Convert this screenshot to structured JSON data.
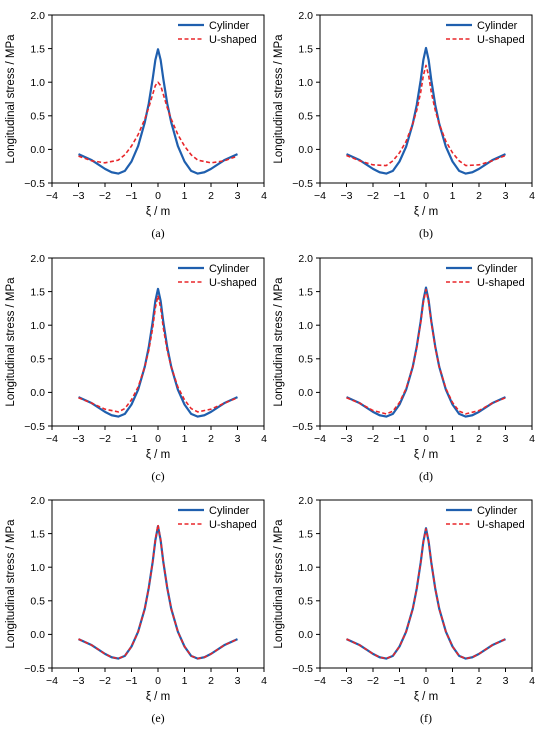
{
  "chart_data": [
    {
      "type": "line",
      "panel_label": "(a)",
      "xlabel": "ξ / m",
      "ylabel": "Longitudinal stress / MPa",
      "xlim": [
        -4,
        4
      ],
      "ylim": [
        -0.5,
        2.0
      ],
      "xticks": [
        "−4",
        "−3",
        "−2",
        "−1",
        "0",
        "1",
        "2",
        "3",
        "4"
      ],
      "yticks": [
        "−0.5",
        "0.0",
        "0.5",
        "1.0",
        "1.5",
        "2.0"
      ],
      "legend_position": "top-right",
      "series": [
        {
          "name": "Cylinder",
          "color": "#1f5fae",
          "style": "solid",
          "x": [
            -3.0,
            -2.5,
            -2.0,
            -1.75,
            -1.5,
            -1.25,
            -1.0,
            -0.75,
            -0.5,
            -0.35,
            -0.2,
            -0.1,
            0.0,
            0.1,
            0.2,
            0.35,
            0.5,
            0.75,
            1.0,
            1.25,
            1.5,
            1.75,
            2.0,
            2.5,
            3.0
          ],
          "y": [
            -0.07,
            -0.16,
            -0.29,
            -0.34,
            -0.36,
            -0.32,
            -0.18,
            0.05,
            0.4,
            0.68,
            1.05,
            1.33,
            1.49,
            1.33,
            1.05,
            0.68,
            0.4,
            0.05,
            -0.18,
            -0.32,
            -0.36,
            -0.34,
            -0.29,
            -0.16,
            -0.07
          ]
        },
        {
          "name": "U-shaped",
          "color": "#e8262a",
          "style": "dashed",
          "x": [
            -3.0,
            -2.5,
            -2.0,
            -1.5,
            -1.25,
            -1.0,
            -0.75,
            -0.5,
            -0.35,
            -0.2,
            -0.1,
            0.0,
            0.1,
            0.2,
            0.35,
            0.5,
            0.75,
            1.0,
            1.25,
            1.5,
            2.0,
            2.5,
            3.0
          ],
          "y": [
            -0.1,
            -0.17,
            -0.2,
            -0.16,
            -0.08,
            0.05,
            0.22,
            0.45,
            0.62,
            0.82,
            0.95,
            1.0,
            0.95,
            0.82,
            0.62,
            0.45,
            0.22,
            0.05,
            -0.08,
            -0.16,
            -0.2,
            -0.17,
            -0.1
          ]
        }
      ]
    },
    {
      "type": "line",
      "panel_label": "(b)",
      "xlabel": "ξ / m",
      "ylabel": "Longitudinal stress / MPa",
      "xlim": [
        -4,
        4
      ],
      "ylim": [
        -0.5,
        2.0
      ],
      "xticks": [
        "−4",
        "−3",
        "−2",
        "−1",
        "0",
        "1",
        "2",
        "3",
        "4"
      ],
      "yticks": [
        "−0.5",
        "0.0",
        "0.5",
        "1.0",
        "1.5",
        "2.0"
      ],
      "legend_position": "top-right",
      "series": [
        {
          "name": "Cylinder",
          "color": "#1f5fae",
          "style": "solid",
          "x": [
            -3.0,
            -2.5,
            -2.0,
            -1.75,
            -1.5,
            -1.25,
            -1.0,
            -0.75,
            -0.5,
            -0.35,
            -0.2,
            -0.1,
            0.0,
            0.1,
            0.2,
            0.35,
            0.5,
            0.75,
            1.0,
            1.25,
            1.5,
            1.75,
            2.0,
            2.5,
            3.0
          ],
          "y": [
            -0.07,
            -0.16,
            -0.29,
            -0.34,
            -0.36,
            -0.32,
            -0.18,
            0.04,
            0.38,
            0.66,
            1.03,
            1.33,
            1.51,
            1.33,
            1.03,
            0.66,
            0.38,
            0.04,
            -0.18,
            -0.32,
            -0.36,
            -0.34,
            -0.29,
            -0.16,
            -0.07
          ]
        },
        {
          "name": "U-shaped",
          "color": "#e8262a",
          "style": "dashed",
          "x": [
            -3.0,
            -2.5,
            -2.0,
            -1.5,
            -1.25,
            -1.0,
            -0.75,
            -0.5,
            -0.35,
            -0.2,
            -0.1,
            0.0,
            0.1,
            0.2,
            0.35,
            0.5,
            0.75,
            1.0,
            1.25,
            1.5,
            2.0,
            2.5,
            3.0
          ],
          "y": [
            -0.09,
            -0.17,
            -0.23,
            -0.24,
            -0.17,
            -0.05,
            0.12,
            0.38,
            0.58,
            0.85,
            1.1,
            1.25,
            1.1,
            0.85,
            0.58,
            0.38,
            0.12,
            -0.05,
            -0.17,
            -0.24,
            -0.23,
            -0.17,
            -0.09
          ]
        }
      ]
    },
    {
      "type": "line",
      "panel_label": "(c)",
      "xlabel": "ξ / m",
      "ylabel": "Longitudinal stress / MPa",
      "xlim": [
        -4,
        4
      ],
      "ylim": [
        -0.5,
        2.0
      ],
      "xticks": [
        "−4",
        "−3",
        "−2",
        "−1",
        "0",
        "1",
        "2",
        "3",
        "4"
      ],
      "yticks": [
        "−0.5",
        "0.0",
        "0.5",
        "1.0",
        "1.5",
        "2.0"
      ],
      "legend_position": "top-right",
      "series": [
        {
          "name": "Cylinder",
          "color": "#1f5fae",
          "style": "solid",
          "x": [
            -3.0,
            -2.5,
            -2.0,
            -1.75,
            -1.5,
            -1.25,
            -1.0,
            -0.75,
            -0.5,
            -0.35,
            -0.2,
            -0.1,
            0.0,
            0.1,
            0.2,
            0.35,
            0.5,
            0.75,
            1.0,
            1.25,
            1.5,
            1.75,
            2.0,
            2.5,
            3.0
          ],
          "y": [
            -0.07,
            -0.16,
            -0.29,
            -0.34,
            -0.36,
            -0.32,
            -0.18,
            0.04,
            0.38,
            0.67,
            1.05,
            1.36,
            1.54,
            1.36,
            1.05,
            0.67,
            0.38,
            0.04,
            -0.18,
            -0.32,
            -0.36,
            -0.34,
            -0.29,
            -0.16,
            -0.07
          ]
        },
        {
          "name": "U-shaped",
          "color": "#e8262a",
          "style": "dashed",
          "x": [
            -3.0,
            -2.5,
            -2.0,
            -1.5,
            -1.25,
            -1.0,
            -0.75,
            -0.5,
            -0.35,
            -0.2,
            -0.1,
            0.0,
            0.1,
            0.2,
            0.35,
            0.5,
            0.75,
            1.0,
            1.25,
            1.5,
            2.0,
            2.5,
            3.0
          ],
          "y": [
            -0.08,
            -0.16,
            -0.25,
            -0.29,
            -0.24,
            -0.11,
            0.08,
            0.38,
            0.62,
            0.96,
            1.26,
            1.44,
            1.26,
            0.96,
            0.62,
            0.38,
            0.08,
            -0.11,
            -0.24,
            -0.29,
            -0.25,
            -0.16,
            -0.08
          ]
        }
      ]
    },
    {
      "type": "line",
      "panel_label": "(d)",
      "xlabel": "ξ / m",
      "ylabel": "Longitudinal stress / MPa",
      "xlim": [
        -4,
        4
      ],
      "ylim": [
        -0.5,
        2.0
      ],
      "xticks": [
        "−4",
        "−3",
        "−2",
        "−1",
        "0",
        "1",
        "2",
        "3",
        "4"
      ],
      "yticks": [
        "−0.5",
        "0.0",
        "0.5",
        "1.0",
        "1.5",
        "2.0"
      ],
      "legend_position": "top-right",
      "series": [
        {
          "name": "Cylinder",
          "color": "#1f5fae",
          "style": "solid",
          "x": [
            -3.0,
            -2.5,
            -2.0,
            -1.75,
            -1.5,
            -1.25,
            -1.0,
            -0.75,
            -0.5,
            -0.35,
            -0.2,
            -0.1,
            0.0,
            0.1,
            0.2,
            0.35,
            0.5,
            0.75,
            1.0,
            1.25,
            1.5,
            1.75,
            2.0,
            2.5,
            3.0
          ],
          "y": [
            -0.07,
            -0.16,
            -0.29,
            -0.34,
            -0.36,
            -0.32,
            -0.18,
            0.04,
            0.38,
            0.68,
            1.06,
            1.37,
            1.56,
            1.37,
            1.06,
            0.68,
            0.38,
            0.04,
            -0.18,
            -0.32,
            -0.36,
            -0.34,
            -0.29,
            -0.16,
            -0.07
          ]
        },
        {
          "name": "U-shaped",
          "color": "#e8262a",
          "style": "dashed",
          "x": [
            -3.0,
            -2.5,
            -2.0,
            -1.5,
            -1.25,
            -1.0,
            -0.75,
            -0.5,
            -0.35,
            -0.2,
            -0.1,
            0.0,
            0.1,
            0.2,
            0.35,
            0.5,
            0.75,
            1.0,
            1.25,
            1.5,
            2.0,
            2.5,
            3.0
          ],
          "y": [
            -0.08,
            -0.16,
            -0.27,
            -0.32,
            -0.28,
            -0.15,
            0.06,
            0.38,
            0.66,
            1.04,
            1.34,
            1.53,
            1.34,
            1.04,
            0.66,
            0.38,
            0.06,
            -0.15,
            -0.28,
            -0.32,
            -0.27,
            -0.16,
            -0.08
          ]
        }
      ]
    },
    {
      "type": "line",
      "panel_label": "(e)",
      "xlabel": "ξ / m",
      "ylabel": "Longitudinal stress / MPa",
      "xlim": [
        -4,
        4
      ],
      "ylim": [
        -0.5,
        2.0
      ],
      "xticks": [
        "−4",
        "−3",
        "−2",
        "−1",
        "0",
        "1",
        "2",
        "3",
        "4"
      ],
      "yticks": [
        "−0.5",
        "0.0",
        "0.5",
        "1.0",
        "1.5",
        "2.0"
      ],
      "legend_position": "top-right",
      "series": [
        {
          "name": "Cylinder",
          "color": "#1f5fae",
          "style": "solid",
          "x": [
            -3.0,
            -2.5,
            -2.0,
            -1.75,
            -1.5,
            -1.25,
            -1.0,
            -0.75,
            -0.5,
            -0.35,
            -0.2,
            -0.1,
            0.0,
            0.1,
            0.2,
            0.35,
            0.5,
            0.75,
            1.0,
            1.25,
            1.5,
            1.75,
            2.0,
            2.5,
            3.0
          ],
          "y": [
            -0.07,
            -0.16,
            -0.29,
            -0.34,
            -0.36,
            -0.32,
            -0.18,
            0.04,
            0.38,
            0.69,
            1.08,
            1.4,
            1.61,
            1.4,
            1.08,
            0.69,
            0.38,
            0.04,
            -0.18,
            -0.32,
            -0.36,
            -0.34,
            -0.29,
            -0.16,
            -0.07
          ]
        },
        {
          "name": "U-shaped",
          "color": "#e8262a",
          "style": "dashed",
          "x": [
            -3.0,
            -2.5,
            -2.0,
            -1.75,
            -1.5,
            -1.25,
            -1.0,
            -0.75,
            -0.5,
            -0.35,
            -0.2,
            -0.1,
            0.0,
            0.1,
            0.2,
            0.35,
            0.5,
            0.75,
            1.0,
            1.25,
            1.5,
            1.75,
            2.0,
            2.5,
            3.0
          ],
          "y": [
            -0.07,
            -0.16,
            -0.29,
            -0.34,
            -0.36,
            -0.32,
            -0.18,
            0.04,
            0.38,
            0.69,
            1.08,
            1.41,
            1.63,
            1.41,
            1.08,
            0.69,
            0.38,
            0.04,
            -0.18,
            -0.32,
            -0.36,
            -0.34,
            -0.29,
            -0.16,
            -0.07
          ]
        }
      ]
    },
    {
      "type": "line",
      "panel_label": "(f)",
      "xlabel": "ξ / m",
      "ylabel": "Longitudinal stress / MPa",
      "xlim": [
        -4,
        4
      ],
      "ylim": [
        -0.5,
        2.0
      ],
      "xticks": [
        "−4",
        "−3",
        "−2",
        "−1",
        "0",
        "1",
        "2",
        "3",
        "4"
      ],
      "yticks": [
        "−0.5",
        "0.0",
        "0.5",
        "1.0",
        "1.5",
        "2.0"
      ],
      "legend_position": "top-right",
      "series": [
        {
          "name": "Cylinder",
          "color": "#1f5fae",
          "style": "solid",
          "x": [
            -3.0,
            -2.5,
            -2.0,
            -1.75,
            -1.5,
            -1.25,
            -1.0,
            -0.75,
            -0.5,
            -0.35,
            -0.2,
            -0.1,
            0.0,
            0.1,
            0.2,
            0.35,
            0.5,
            0.75,
            1.0,
            1.25,
            1.5,
            1.75,
            2.0,
            2.5,
            3.0
          ],
          "y": [
            -0.07,
            -0.16,
            -0.29,
            -0.34,
            -0.36,
            -0.32,
            -0.18,
            0.04,
            0.38,
            0.68,
            1.07,
            1.38,
            1.58,
            1.38,
            1.07,
            0.68,
            0.38,
            0.04,
            -0.18,
            -0.32,
            -0.36,
            -0.34,
            -0.29,
            -0.16,
            -0.07
          ]
        },
        {
          "name": "U-shaped",
          "color": "#e8262a",
          "style": "dashed",
          "x": [
            -3.0,
            -2.5,
            -2.0,
            -1.75,
            -1.5,
            -1.25,
            -1.0,
            -0.75,
            -0.5,
            -0.35,
            -0.2,
            -0.1,
            0.0,
            0.1,
            0.2,
            0.35,
            0.5,
            0.75,
            1.0,
            1.25,
            1.5,
            1.75,
            2.0,
            2.5,
            3.0
          ],
          "y": [
            -0.07,
            -0.16,
            -0.29,
            -0.34,
            -0.36,
            -0.32,
            -0.18,
            0.04,
            0.38,
            0.68,
            1.07,
            1.38,
            1.57,
            1.38,
            1.07,
            0.68,
            0.38,
            0.04,
            -0.18,
            -0.32,
            -0.36,
            -0.34,
            -0.29,
            -0.16,
            -0.07
          ]
        }
      ]
    }
  ]
}
